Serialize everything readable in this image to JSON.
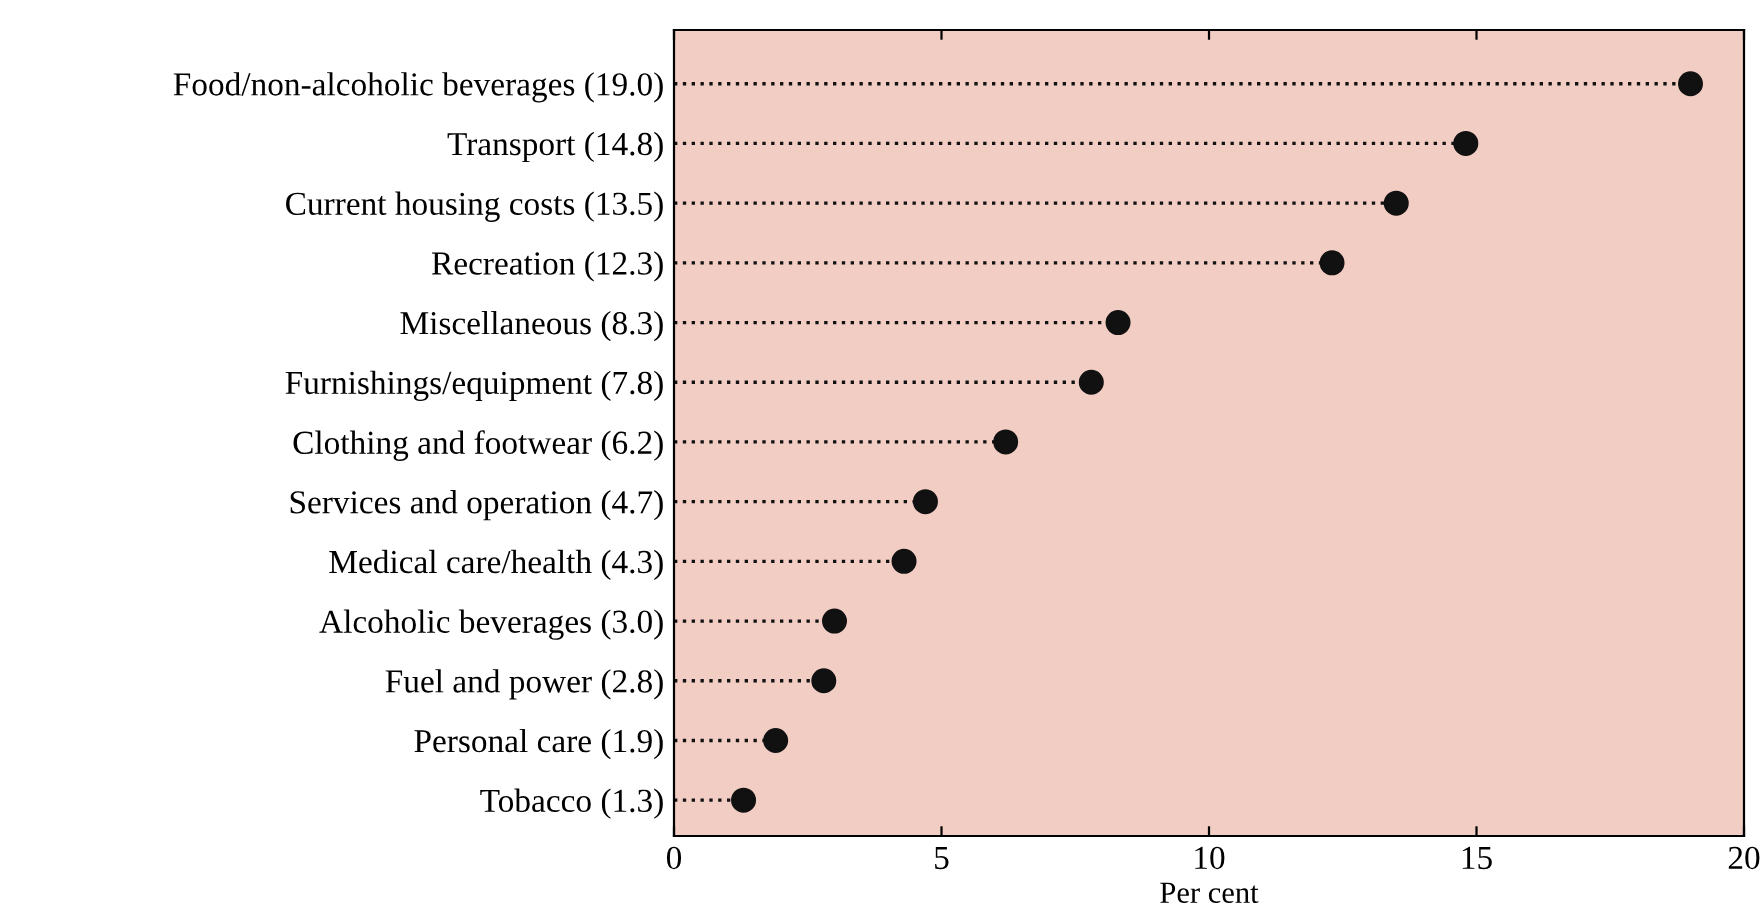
{
  "chart_data": {
    "type": "lollipop",
    "orientation": "horizontal",
    "categories": [
      "Food/non-alcoholic beverages (19.0)",
      "Transport (14.8)",
      "Current housing costs (13.5)",
      "Recreation (12.3)",
      "Miscellaneous (8.3)",
      "Furnishings/equipment (7.8)",
      "Clothing and footwear (6.2)",
      "Services and operation (4.7)",
      "Medical care/health (4.3)",
      "Alcoholic beverages (3.0)",
      "Fuel and power (2.8)",
      "Personal care (1.9)",
      "Tobacco (1.3)"
    ],
    "values": [
      19.0,
      14.8,
      13.5,
      12.3,
      8.3,
      7.8,
      6.2,
      4.7,
      4.3,
      3.0,
      2.8,
      1.9,
      1.3
    ],
    "color": "#111111",
    "xlabel": "Per cent",
    "xlim": [
      0,
      20
    ],
    "xticks": [
      0,
      5,
      10,
      15,
      20
    ],
    "marker": "circle",
    "line_style": "dotted",
    "legend": false
  }
}
